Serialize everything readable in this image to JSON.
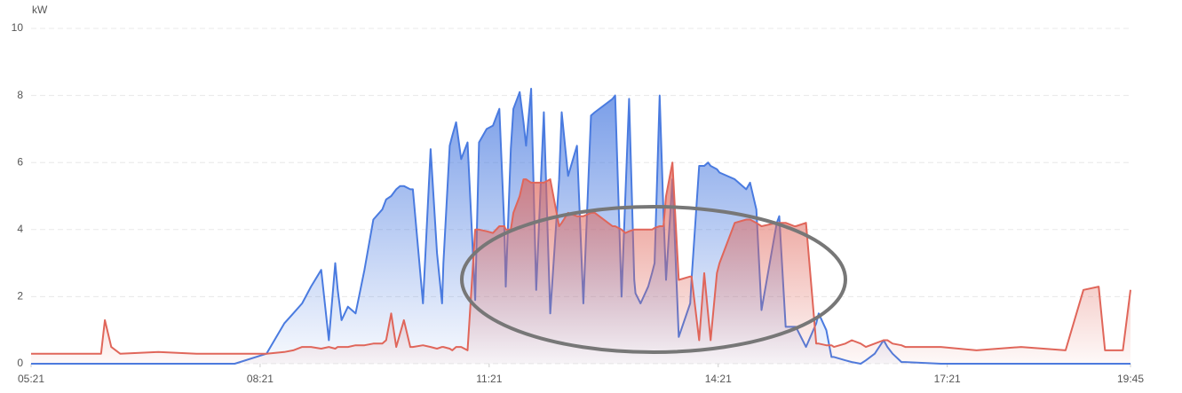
{
  "chart_data": {
    "type": "area",
    "y_label": "kW",
    "x": [
      "05:21",
      "05:51",
      "06:16",
      "06:19",
      "06:24",
      "06:31",
      "07:01",
      "07:31",
      "08:01",
      "08:26",
      "08:40",
      "08:47",
      "08:54",
      "09:01",
      "09:09",
      "09:15",
      "09:20",
      "09:22",
      "09:25",
      "09:30",
      "09:36",
      "09:43",
      "09:50",
      "09:57",
      "10:00",
      "10:04",
      "10:08",
      "10:11",
      "10:14",
      "10:19",
      "10:21",
      "10:29",
      "10:35",
      "10:40",
      "10:44",
      "10:45",
      "10:50",
      "10:52",
      "10:55",
      "10:59",
      "11:04",
      "11:10",
      "11:13",
      "11:19",
      "11:24",
      "11:29",
      "11:33",
      "11:34",
      "11:38",
      "11:40",
      "11:45",
      "11:48",
      "11:50",
      "11:54",
      "11:58",
      "12:04",
      "12:09",
      "12:16",
      "12:18",
      "12:23",
      "12:30",
      "12:35",
      "12:41",
      "12:44",
      "12:58",
      "13:00",
      "13:05",
      "13:08",
      "13:11",
      "13:15",
      "13:16",
      "13:20",
      "13:26",
      "13:29",
      "13:31",
      "13:35",
      "13:38",
      "13:40",
      "13:45",
      "13:50",
      "13:59",
      "14:00",
      "14:06",
      "14:10",
      "14:13",
      "14:15",
      "14:20",
      "14:22",
      "14:34",
      "14:43",
      "14:46",
      "14:51",
      "14:55",
      "15:07",
      "15:09",
      "15:14",
      "15:21",
      "15:22",
      "15:30",
      "15:38",
      "15:40",
      "15:46",
      "15:50",
      "15:52",
      "16:01",
      "16:06",
      "16:13",
      "16:17",
      "16:24",
      "16:31",
      "16:34",
      "16:38",
      "16:45",
      "16:48",
      "17:16",
      "17:44",
      "18:19",
      "18:54",
      "19:08",
      "19:20",
      "19:25",
      "19:39",
      "19:45"
    ],
    "series": [
      {
        "color": "#4a7be0",
        "values": [
          0,
          0,
          0,
          0,
          0,
          0,
          0,
          0,
          0,
          0.3,
          1.2,
          1.5,
          1.8,
          2.3,
          2.8,
          0.7,
          3.0,
          2.2,
          1.3,
          1.7,
          1.5,
          2.8,
          4.3,
          4.6,
          4.9,
          5.0,
          5.2,
          5.3,
          5.3,
          5.2,
          5.2,
          1.8,
          6.4,
          3.3,
          1.8,
          3.0,
          6.5,
          6.8,
          7.2,
          6.1,
          6.6,
          1.9,
          6.6,
          7.0,
          7.1,
          7.6,
          4.0,
          2.3,
          6.4,
          7.6,
          8.1,
          7.2,
          6.5,
          8.2,
          2.2,
          7.5,
          1.5,
          5.5,
          7.5,
          5.6,
          6.5,
          1.8,
          7.4,
          7.5,
          7.9,
          8.0,
          2.0,
          5.0,
          7.9,
          2.5,
          2.1,
          1.8,
          2.3,
          2.7,
          3.0,
          8.0,
          4.5,
          2.5,
          5.5,
          0.8,
          1.8,
          2.5,
          5.9,
          5.9,
          6.0,
          5.9,
          5.8,
          5.7,
          5.5,
          5.2,
          5.4,
          4.6,
          1.6,
          4.2,
          4.4,
          1.1,
          1.1,
          1.1,
          0.5,
          1.2,
          1.5,
          1.0,
          0.2,
          0.2,
          0.1,
          0.05,
          0,
          0.1,
          0.3,
          0.7,
          0.5,
          0.3,
          0.05,
          0.05,
          0,
          0,
          0,
          0,
          0,
          0,
          0,
          0,
          0
        ]
      },
      {
        "color": "#e0665a",
        "values": [
          0.3,
          0.3,
          0.3,
          1.3,
          0.5,
          0.3,
          0.35,
          0.3,
          0.3,
          0.3,
          0.35,
          0.4,
          0.5,
          0.5,
          0.45,
          0.5,
          0.45,
          0.5,
          0.5,
          0.5,
          0.55,
          0.55,
          0.6,
          0.6,
          0.7,
          1.5,
          0.5,
          0.9,
          1.3,
          0.5,
          0.5,
          0.55,
          0.5,
          0.45,
          0.5,
          0.5,
          0.45,
          0.4,
          0.5,
          0.5,
          0.4,
          4.0,
          4.0,
          3.95,
          3.9,
          4.1,
          4.1,
          4.0,
          4.0,
          4.5,
          5.0,
          5.5,
          5.5,
          5.4,
          5.4,
          5.4,
          5.5,
          4.1,
          4.2,
          4.5,
          4.4,
          4.4,
          4.5,
          4.5,
          4.1,
          4.1,
          4.0,
          3.9,
          3.95,
          4.0,
          4.0,
          4.0,
          4.0,
          4.0,
          4.05,
          4.1,
          4.1,
          5.0,
          6.0,
          2.5,
          2.6,
          2.6,
          0.7,
          2.7,
          1.5,
          0.7,
          2.7,
          3.0,
          4.2,
          4.3,
          4.3,
          4.2,
          4.1,
          4.2,
          4.2,
          4.2,
          4.1,
          4.1,
          4.2,
          0.6,
          0.6,
          0.55,
          0.55,
          0.5,
          0.6,
          0.7,
          0.6,
          0.5,
          0.6,
          0.7,
          0.7,
          0.6,
          0.55,
          0.5,
          0.5,
          0.4,
          0.5,
          0.4,
          2.2,
          2.3,
          0.4,
          0.4,
          2.2
        ]
      }
    ],
    "xlim": [
      "05:21",
      "19:45"
    ],
    "xticks": [
      "05:21",
      "08:21",
      "11:21",
      "14:21",
      "17:21",
      "19:45"
    ],
    "ylim": [
      0,
      10
    ],
    "yticks": [
      0,
      2,
      4,
      6,
      8,
      10
    ],
    "grid": true
  }
}
